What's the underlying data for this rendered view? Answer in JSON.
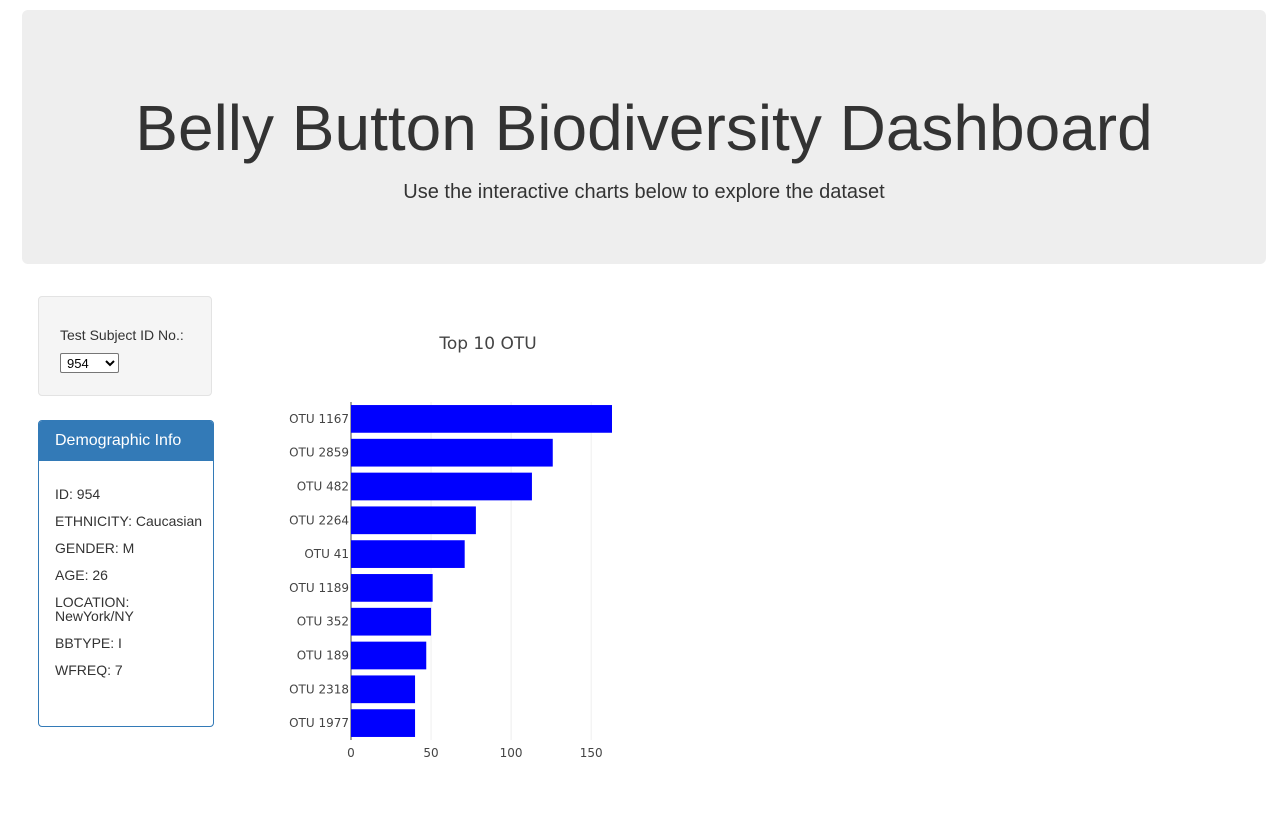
{
  "header": {
    "title": "Belly Button Biodiversity Dashboard",
    "subtitle": "Use the interactive charts below to explore the dataset"
  },
  "selector": {
    "label": "Test Subject ID No.:",
    "selected_value": "954"
  },
  "demographic": {
    "heading": "Demographic Info",
    "rows": [
      "ID: 954",
      "ETHNICITY: Caucasian",
      "GENDER: M",
      "AGE: 26",
      "LOCATION: NewYork/NY",
      "BBTYPE: I",
      "WFREQ: 7"
    ]
  },
  "colors": {
    "bar": "#0000ff",
    "panel": "#337ab7",
    "jumbotron": "#eeeeee"
  },
  "chart_data": {
    "type": "bar",
    "orientation": "horizontal",
    "title": "Top 10 OTU",
    "categories": [
      "OTU 1167",
      "OTU 2859",
      "OTU 482",
      "OTU 2264",
      "OTU 41",
      "OTU 1189",
      "OTU 352",
      "OTU 189",
      "OTU 2318",
      "OTU 1977"
    ],
    "values": [
      163,
      126,
      113,
      78,
      71,
      51,
      50,
      47,
      40,
      40
    ],
    "xticks": [
      "0",
      "50",
      "100",
      "150"
    ],
    "xlim": [
      0,
      163
    ],
    "xlabel": "",
    "ylabel": "",
    "grid": true
  }
}
